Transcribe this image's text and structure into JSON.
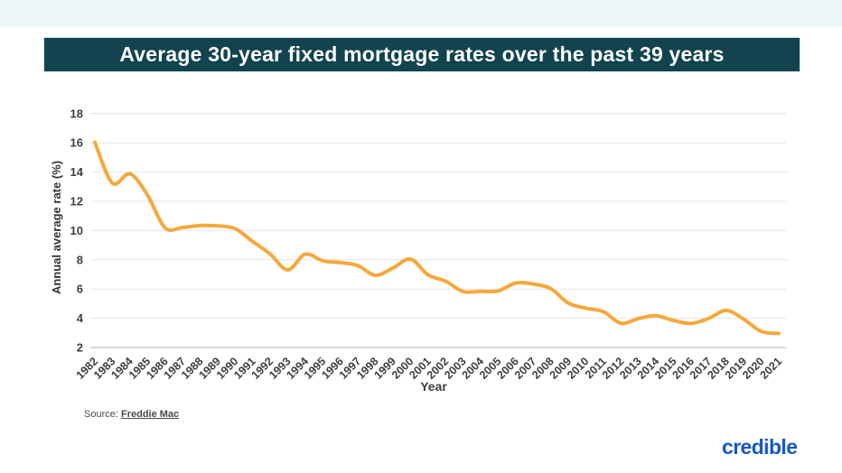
{
  "page": {
    "title": "Average 30-year fixed mortgage rates over the past 39 years",
    "source_label": "Source:",
    "source_link": "Freddie Mac",
    "brand": "credible"
  },
  "colors": {
    "banner_bg": "#12434f",
    "line": "#f5a83c",
    "grid": "#e4e4e4",
    "axis_line": "#c9c9c9",
    "tick_text": "#3f3f3f",
    "brand_blue": "#1758c8"
  },
  "chart_data": {
    "type": "line",
    "title": "Average 30-year fixed mortgage rates over the past 39 years",
    "xlabel": "Year",
    "ylabel": "Annual average rate (%)",
    "ylim": [
      2,
      18
    ],
    "yticks": [
      2,
      4,
      6,
      8,
      10,
      12,
      14,
      16,
      18
    ],
    "grid": true,
    "legend": "none",
    "line_color": "#f5a83c",
    "x": [
      1982,
      1983,
      1984,
      1985,
      1986,
      1987,
      1988,
      1989,
      1990,
      1991,
      1992,
      1993,
      1994,
      1995,
      1996,
      1997,
      1998,
      1999,
      2000,
      2001,
      2002,
      2003,
      2004,
      2005,
      2006,
      2007,
      2008,
      2009,
      2010,
      2011,
      2012,
      2013,
      2014,
      2015,
      2016,
      2017,
      2018,
      2019,
      2020,
      2021
    ],
    "values": [
      16.04,
      13.24,
      13.88,
      12.43,
      10.19,
      10.21,
      10.34,
      10.32,
      10.13,
      9.25,
      8.39,
      7.31,
      8.38,
      7.93,
      7.81,
      7.6,
      6.94,
      7.44,
      8.05,
      6.97,
      6.54,
      5.83,
      5.84,
      5.87,
      6.41,
      6.34,
      6.03,
      5.04,
      4.69,
      4.45,
      3.66,
      3.98,
      4.17,
      3.85,
      3.65,
      3.99,
      4.54,
      3.94,
      3.1,
      2.96
    ]
  }
}
